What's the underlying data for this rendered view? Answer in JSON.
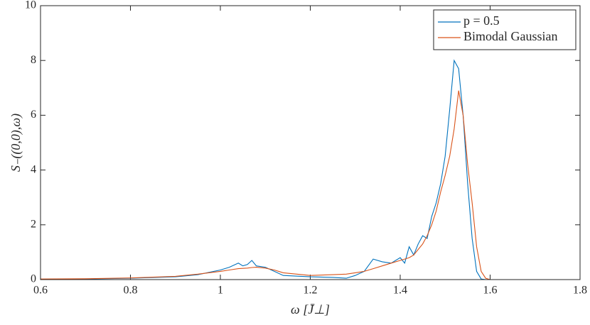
{
  "chart_data": {
    "type": "line",
    "xlabel": "ω [J̄⊥]",
    "ylabel": "S₋((0,0),ω)",
    "x": [
      0.6,
      0.7,
      0.8,
      0.9,
      0.95,
      1.0,
      1.02,
      1.04,
      1.05,
      1.06,
      1.07,
      1.08,
      1.1,
      1.12,
      1.14,
      1.2,
      1.25,
      1.28,
      1.3,
      1.32,
      1.34,
      1.36,
      1.38,
      1.4,
      1.41,
      1.42,
      1.43,
      1.44,
      1.45,
      1.46,
      1.47,
      1.48,
      1.49,
      1.5,
      1.51,
      1.52,
      1.53,
      1.54,
      1.55,
      1.56,
      1.57,
      1.58,
      1.59,
      1.6,
      1.7,
      1.8
    ],
    "series": [
      {
        "name": "p = 0.5",
        "color": "#0072bd",
        "values": [
          0.01,
          0.02,
          0.05,
          0.1,
          0.18,
          0.35,
          0.45,
          0.6,
          0.5,
          0.55,
          0.7,
          0.5,
          0.45,
          0.3,
          0.15,
          0.1,
          0.08,
          0.05,
          0.15,
          0.3,
          0.75,
          0.65,
          0.6,
          0.8,
          0.6,
          1.2,
          0.9,
          1.3,
          1.6,
          1.5,
          2.3,
          2.8,
          3.5,
          4.5,
          6.2,
          8.0,
          7.7,
          6.0,
          3.5,
          1.5,
          0.3,
          0.02,
          0,
          0,
          0,
          0
        ]
      },
      {
        "name": "Bimodal Gaussian",
        "color": "#d95319",
        "values": [
          0.02,
          0.03,
          0.06,
          0.12,
          0.2,
          0.3,
          0.35,
          0.4,
          0.41,
          0.42,
          0.44,
          0.45,
          0.42,
          0.35,
          0.25,
          0.15,
          0.18,
          0.2,
          0.25,
          0.3,
          0.4,
          0.5,
          0.6,
          0.7,
          0.75,
          0.8,
          0.9,
          1.1,
          1.3,
          1.6,
          2.0,
          2.5,
          3.2,
          3.8,
          4.5,
          5.5,
          6.9,
          6.0,
          4.2,
          2.8,
          1.2,
          0.3,
          0.05,
          0,
          0,
          0
        ]
      }
    ],
    "xlim": [
      0.6,
      1.8
    ],
    "xticks": [
      0.6,
      0.8,
      1,
      1.2,
      1.4,
      1.6,
      1.8
    ],
    "ylim": [
      0,
      10
    ],
    "yticks": [
      0,
      2,
      4,
      6,
      8,
      10
    ],
    "legend": "top-right"
  }
}
